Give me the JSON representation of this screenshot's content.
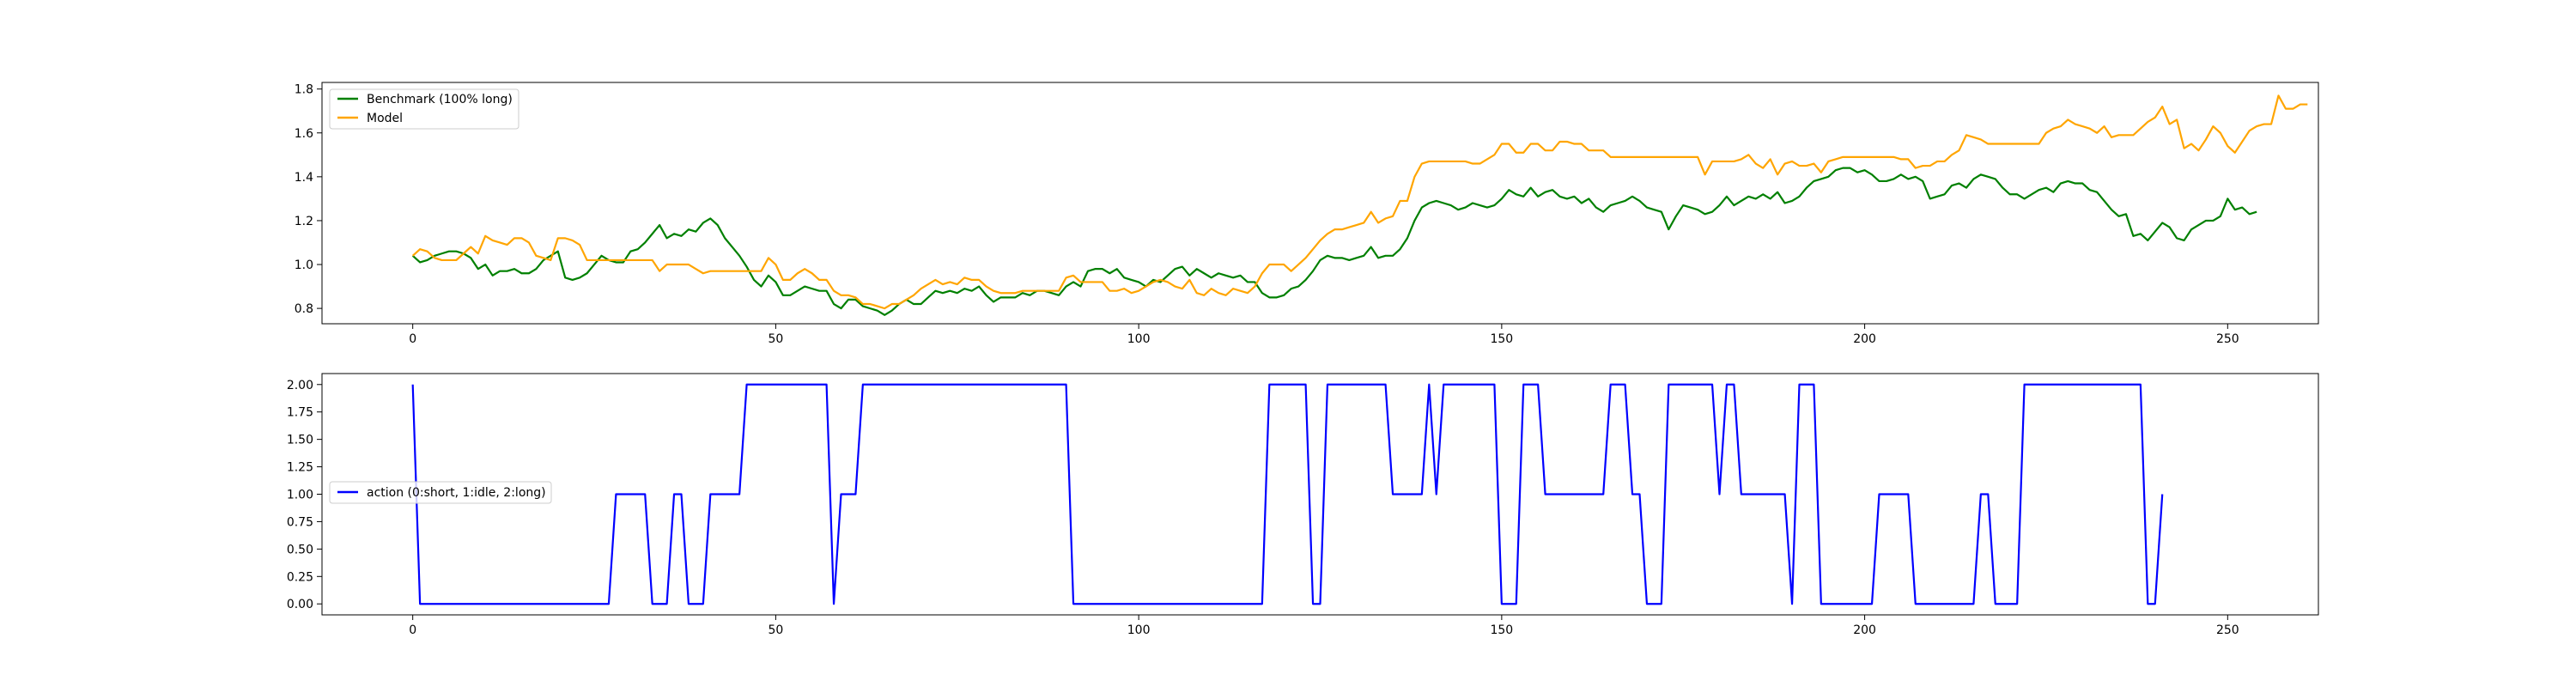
{
  "chart_data": [
    {
      "type": "line",
      "title": "",
      "xlabel": "",
      "ylabel": "",
      "xlim": [
        -12.5,
        262.5
      ],
      "ylim": [
        0.73,
        1.83
      ],
      "xticks": [
        0,
        50,
        100,
        150,
        200,
        250
      ],
      "yticks": [
        0.8,
        1.0,
        1.2,
        1.4,
        1.6,
        1.8
      ],
      "xtick_labels": [
        "0",
        "50",
        "100",
        "150",
        "200",
        "250"
      ],
      "ytick_labels": [
        "0.8",
        "1.0",
        "1.2",
        "1.4",
        "1.6",
        "1.8"
      ],
      "grid": false,
      "legend_position": "upper-left",
      "x_start": 0,
      "series": [
        {
          "name": "Benchmark (100% long)",
          "color": "#008000",
          "values": [
            1.04,
            1.01,
            1.02,
            1.04,
            1.05,
            1.06,
            1.06,
            1.05,
            1.03,
            0.98,
            1.0,
            0.95,
            0.97,
            0.97,
            0.98,
            0.96,
            0.96,
            0.98,
            1.02,
            1.04,
            1.06,
            0.94,
            0.93,
            0.94,
            0.96,
            1.0,
            1.04,
            1.02,
            1.01,
            1.01,
            1.06,
            1.07,
            1.1,
            1.14,
            1.18,
            1.12,
            1.14,
            1.13,
            1.16,
            1.15,
            1.19,
            1.21,
            1.18,
            1.12,
            1.08,
            1.04,
            0.99,
            0.93,
            0.9,
            0.95,
            0.92,
            0.86,
            0.86,
            0.88,
            0.9,
            0.89,
            0.88,
            0.88,
            0.82,
            0.8,
            0.84,
            0.84,
            0.81,
            0.8,
            0.79,
            0.77,
            0.79,
            0.82,
            0.84,
            0.82,
            0.82,
            0.85,
            0.88,
            0.87,
            0.88,
            0.87,
            0.89,
            0.88,
            0.9,
            0.86,
            0.83,
            0.85,
            0.85,
            0.85,
            0.87,
            0.86,
            0.88,
            0.88,
            0.87,
            0.86,
            0.9,
            0.92,
            0.9,
            0.97,
            0.98,
            0.98,
            0.96,
            0.98,
            0.94,
            0.93,
            0.92,
            0.9,
            0.93,
            0.92,
            0.95,
            0.98,
            0.99,
            0.95,
            0.98,
            0.96,
            0.94,
            0.96,
            0.95,
            0.94,
            0.95,
            0.92,
            0.92,
            0.87,
            0.85,
            0.85,
            0.86,
            0.89,
            0.9,
            0.93,
            0.97,
            1.02,
            1.04,
            1.03,
            1.03,
            1.02,
            1.03,
            1.04,
            1.08,
            1.03,
            1.04,
            1.04,
            1.07,
            1.12,
            1.2,
            1.26,
            1.28,
            1.29,
            1.28,
            1.27,
            1.25,
            1.26,
            1.28,
            1.27,
            1.26,
            1.27,
            1.3,
            1.34,
            1.32,
            1.31,
            1.35,
            1.31,
            1.33,
            1.34,
            1.31,
            1.3,
            1.31,
            1.28,
            1.3,
            1.26,
            1.24,
            1.27,
            1.28,
            1.29,
            1.31,
            1.29,
            1.26,
            1.25,
            1.24,
            1.16,
            1.22,
            1.27,
            1.26,
            1.25,
            1.23,
            1.24,
            1.27,
            1.31,
            1.27,
            1.29,
            1.31,
            1.3,
            1.32,
            1.3,
            1.33,
            1.28,
            1.29,
            1.31,
            1.35,
            1.38,
            1.39,
            1.4,
            1.43,
            1.44,
            1.44,
            1.42,
            1.43,
            1.41,
            1.38,
            1.38,
            1.39,
            1.41,
            1.39,
            1.4,
            1.38,
            1.3,
            1.31,
            1.32,
            1.36,
            1.37,
            1.35,
            1.39,
            1.41,
            1.4,
            1.39,
            1.35,
            1.32,
            1.32,
            1.3,
            1.32,
            1.34,
            1.35,
            1.33,
            1.37,
            1.38,
            1.37,
            1.37,
            1.34,
            1.33,
            1.29,
            1.25,
            1.22,
            1.23,
            1.13,
            1.14,
            1.11,
            1.15,
            1.19,
            1.17,
            1.12,
            1.11,
            1.16,
            1.18,
            1.2,
            1.2,
            1.22,
            1.3,
            1.25,
            1.26,
            1.23,
            1.24
          ]
        },
        {
          "name": "Model",
          "color": "#FFA500",
          "values": [
            1.04,
            1.07,
            1.06,
            1.03,
            1.02,
            1.02,
            1.02,
            1.05,
            1.08,
            1.05,
            1.13,
            1.11,
            1.1,
            1.09,
            1.12,
            1.12,
            1.1,
            1.04,
            1.03,
            1.02,
            1.12,
            1.12,
            1.11,
            1.09,
            1.02,
            1.02,
            1.02,
            1.02,
            1.02,
            1.02,
            1.02,
            1.02,
            1.02,
            1.02,
            0.97,
            1.0,
            1.0,
            1.0,
            1.0,
            0.98,
            0.96,
            0.97,
            0.97,
            0.97,
            0.97,
            0.97,
            0.97,
            0.97,
            0.97,
            1.03,
            1.0,
            0.93,
            0.93,
            0.96,
            0.98,
            0.96,
            0.93,
            0.93,
            0.88,
            0.86,
            0.86,
            0.85,
            0.82,
            0.82,
            0.81,
            0.8,
            0.82,
            0.82,
            0.84,
            0.86,
            0.89,
            0.91,
            0.93,
            0.91,
            0.92,
            0.91,
            0.94,
            0.93,
            0.93,
            0.9,
            0.88,
            0.87,
            0.87,
            0.87,
            0.88,
            0.88,
            0.88,
            0.88,
            0.88,
            0.88,
            0.94,
            0.95,
            0.92,
            0.92,
            0.92,
            0.92,
            0.88,
            0.88,
            0.89,
            0.87,
            0.88,
            0.9,
            0.92,
            0.93,
            0.92,
            0.9,
            0.89,
            0.93,
            0.87,
            0.86,
            0.89,
            0.87,
            0.86,
            0.89,
            0.88,
            0.87,
            0.9,
            0.96,
            1.0,
            1.0,
            1.0,
            0.97,
            1.0,
            1.03,
            1.07,
            1.11,
            1.14,
            1.16,
            1.16,
            1.17,
            1.18,
            1.19,
            1.24,
            1.19,
            1.21,
            1.22,
            1.29,
            1.29,
            1.4,
            1.46,
            1.47,
            1.47,
            1.47,
            1.47,
            1.47,
            1.47,
            1.46,
            1.46,
            1.48,
            1.5,
            1.55,
            1.55,
            1.51,
            1.51,
            1.55,
            1.55,
            1.52,
            1.52,
            1.56,
            1.56,
            1.55,
            1.55,
            1.52,
            1.52,
            1.52,
            1.49,
            1.49,
            1.49,
            1.49,
            1.49,
            1.49,
            1.49,
            1.49,
            1.49,
            1.49,
            1.49,
            1.49,
            1.49,
            1.41,
            1.47,
            1.47,
            1.47,
            1.47,
            1.48,
            1.5,
            1.46,
            1.44,
            1.48,
            1.41,
            1.46,
            1.47,
            1.45,
            1.45,
            1.46,
            1.42,
            1.47,
            1.48,
            1.49,
            1.49,
            1.49,
            1.49,
            1.49,
            1.49,
            1.49,
            1.49,
            1.48,
            1.48,
            1.44,
            1.45,
            1.45,
            1.47,
            1.47,
            1.5,
            1.52,
            1.59,
            1.58,
            1.57,
            1.55,
            1.55,
            1.55,
            1.55,
            1.55,
            1.55,
            1.55,
            1.55,
            1.6,
            1.62,
            1.63,
            1.66,
            1.64,
            1.63,
            1.62,
            1.6,
            1.63,
            1.58,
            1.59,
            1.59,
            1.59,
            1.62,
            1.65,
            1.67,
            1.72,
            1.64,
            1.66,
            1.53,
            1.55,
            1.52,
            1.57,
            1.63,
            1.6,
            1.54,
            1.51,
            1.56,
            1.61,
            1.63,
            1.64,
            1.64,
            1.77,
            1.71,
            1.71,
            1.73,
            1.73
          ]
        }
      ]
    },
    {
      "type": "line",
      "title": "",
      "xlabel": "",
      "ylabel": "",
      "xlim": [
        -12.5,
        262.5
      ],
      "ylim": [
        -0.1,
        2.1
      ],
      "xticks": [
        0,
        50,
        100,
        150,
        200,
        250
      ],
      "yticks": [
        0.0,
        0.25,
        0.5,
        0.75,
        1.0,
        1.25,
        1.5,
        1.75,
        2.0
      ],
      "xtick_labels": [
        "0",
        "50",
        "100",
        "150",
        "200",
        "250"
      ],
      "ytick_labels": [
        "0.00",
        "0.25",
        "0.50",
        "0.75",
        "1.00",
        "1.25",
        "1.50",
        "1.75",
        "2.00"
      ],
      "grid": false,
      "legend_position": "center-left",
      "x_start": 0,
      "series": [
        {
          "name": "action (0:short, 1:idle, 2:long)",
          "color": "#0000FF",
          "values": [
            2,
            0,
            0,
            0,
            0,
            0,
            0,
            0,
            0,
            0,
            0,
            0,
            0,
            0,
            0,
            0,
            0,
            0,
            0,
            0,
            0,
            0,
            0,
            0,
            0,
            0,
            0,
            0,
            1,
            1,
            1,
            1,
            1,
            0,
            0,
            0,
            1,
            1,
            0,
            0,
            0,
            1,
            1,
            1,
            1,
            1,
            2,
            2,
            2,
            2,
            2,
            2,
            2,
            2,
            2,
            2,
            2,
            2,
            0,
            1,
            1,
            1,
            2,
            2,
            2,
            2,
            2,
            2,
            2,
            2,
            2,
            2,
            2,
            2,
            2,
            2,
            2,
            2,
            2,
            2,
            2,
            2,
            2,
            2,
            2,
            2,
            2,
            2,
            2,
            2,
            2,
            0,
            0,
            0,
            0,
            0,
            0,
            0,
            0,
            0,
            0,
            0,
            0,
            0,
            0,
            0,
            0,
            0,
            0,
            0,
            0,
            0,
            0,
            0,
            0,
            0,
            0,
            0,
            2,
            2,
            2,
            2,
            2,
            2,
            0,
            0,
            2,
            2,
            2,
            2,
            2,
            2,
            2,
            2,
            2,
            1,
            1,
            1,
            1,
            1,
            2,
            1,
            2,
            2,
            2,
            2,
            2,
            2,
            2,
            2,
            0,
            0,
            0,
            2,
            2,
            2,
            1,
            1,
            1,
            1,
            1,
            1,
            1,
            1,
            1,
            2,
            2,
            2,
            1,
            1,
            0,
            0,
            0,
            2,
            2,
            2,
            2,
            2,
            2,
            2,
            1,
            2,
            2,
            1,
            1,
            1,
            1,
            1,
            1,
            1,
            0,
            2,
            2,
            2,
            0,
            0,
            0,
            0,
            0,
            0,
            0,
            0,
            1,
            1,
            1,
            1,
            1,
            0,
            0,
            0,
            0,
            0,
            0,
            0,
            0,
            0,
            1,
            1,
            0,
            0,
            0,
            0,
            2,
            2,
            2,
            2,
            2,
            2,
            2,
            2,
            2,
            2,
            2,
            2,
            2,
            2,
            2,
            2,
            2,
            0,
            0,
            1
          ]
        }
      ]
    }
  ]
}
